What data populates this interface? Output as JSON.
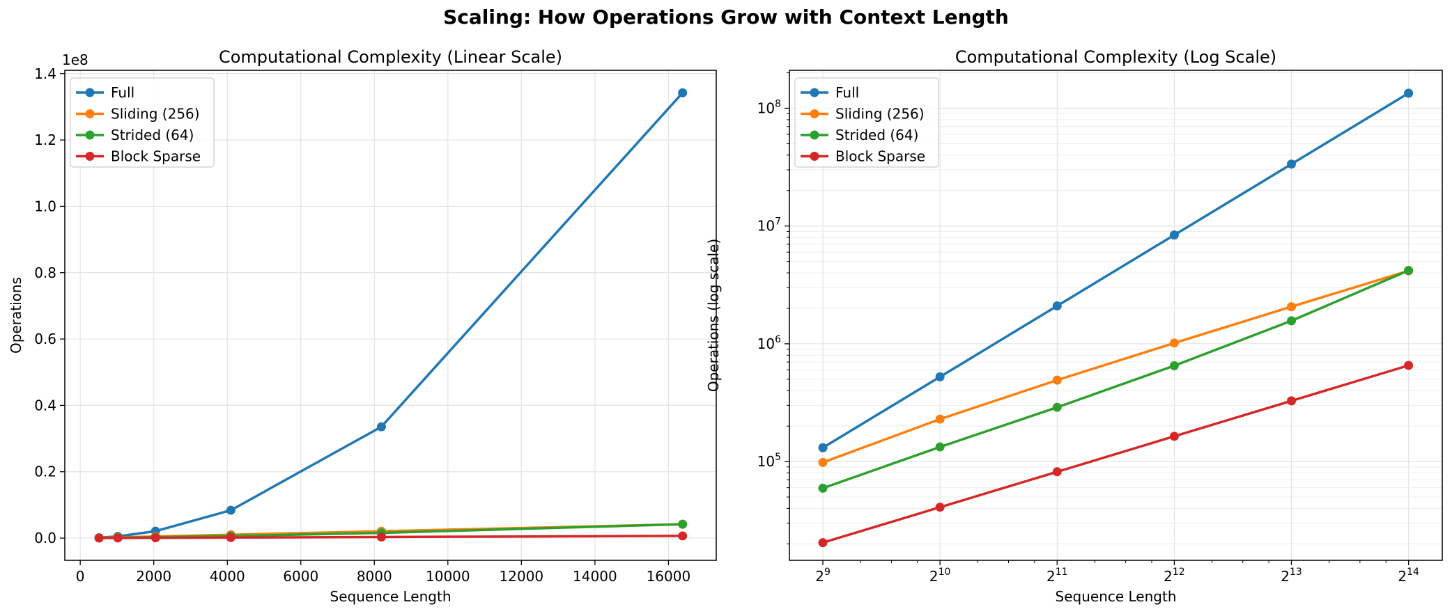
{
  "figure": {
    "title": "Scaling: How Operations Grow with Context Length"
  },
  "chart_data": [
    {
      "type": "line",
      "title": "Computational Complexity (Linear Scale)",
      "xlabel": "Sequence Length",
      "ylabel": "Operations",
      "yscale": "linear",
      "offset_text": "1e8",
      "xlim": [
        -420,
        17300
      ],
      "ylim": [
        -6700000,
        141000000
      ],
      "xticks": [
        0,
        2000,
        4000,
        6000,
        8000,
        10000,
        12000,
        14000,
        16000
      ],
      "xtick_labels": [
        "0",
        "2000",
        "4000",
        "6000",
        "8000",
        "10000",
        "12000",
        "14000",
        "16000"
      ],
      "yticks": [
        0,
        20000000,
        40000000,
        60000000,
        80000000,
        100000000,
        120000000,
        140000000
      ],
      "ytick_labels": [
        "0.0",
        "0.2",
        "0.4",
        "0.6",
        "0.8",
        "1.0",
        "1.2",
        "1.4"
      ],
      "grid": true,
      "legend_position": "top-left",
      "x": [
        512,
        1024,
        2048,
        4096,
        8192,
        16384
      ],
      "series": [
        {
          "name": "Full",
          "color": "#1f77b4",
          "values": [
            131072,
            524288,
            2097152,
            8388608,
            33554432,
            134217728
          ]
        },
        {
          "name": "Sliding (256)",
          "color": "#ff7f0e",
          "values": [
            98304,
            229376,
            491520,
            1015808,
            2064384,
            4161536
          ]
        },
        {
          "name": "Strided (64)",
          "color": "#2ca02c",
          "values": [
            59392,
            133120,
            288768,
            651264,
            1566720,
            4194304
          ]
        },
        {
          "name": "Block Sparse",
          "color": "#d62728",
          "values": [
            20480,
            40960,
            81920,
            163840,
            327680,
            655360
          ]
        }
      ]
    },
    {
      "type": "line",
      "title": "Computational Complexity (Log Scale)",
      "xlabel": "Sequence Length",
      "ylabel": "Operations (log scale)",
      "yscale": "log",
      "xscale": "log2",
      "xlim": [
        420,
        20000
      ],
      "ylim": [
        14500,
        210000000
      ],
      "xticks": [
        512,
        1024,
        2048,
        4096,
        8192,
        16384
      ],
      "xtick_labels": [
        {
          "base": "2",
          "exp": "9"
        },
        {
          "base": "2",
          "exp": "10"
        },
        {
          "base": "2",
          "exp": "11"
        },
        {
          "base": "2",
          "exp": "12"
        },
        {
          "base": "2",
          "exp": "13"
        },
        {
          "base": "2",
          "exp": "14"
        }
      ],
      "yticks": [
        100000,
        1000000,
        10000000,
        100000000
      ],
      "ytick_labels": [
        {
          "base": "10",
          "exp": "5"
        },
        {
          "base": "10",
          "exp": "6"
        },
        {
          "base": "10",
          "exp": "7"
        },
        {
          "base": "10",
          "exp": "8"
        }
      ],
      "grid": true,
      "legend_position": "top-left",
      "x": [
        512,
        1024,
        2048,
        4096,
        8192,
        16384
      ],
      "series": [
        {
          "name": "Full",
          "color": "#1f77b4",
          "values": [
            131072,
            524288,
            2097152,
            8388608,
            33554432,
            134217728
          ]
        },
        {
          "name": "Sliding (256)",
          "color": "#ff7f0e",
          "values": [
            98304,
            229376,
            491520,
            1015808,
            2064384,
            4161536
          ]
        },
        {
          "name": "Strided (64)",
          "color": "#2ca02c",
          "values": [
            59392,
            133120,
            288768,
            651264,
            1566720,
            4194304
          ]
        },
        {
          "name": "Block Sparse",
          "color": "#d62728",
          "values": [
            20480,
            40960,
            81920,
            163840,
            327680,
            655360
          ]
        }
      ]
    }
  ]
}
